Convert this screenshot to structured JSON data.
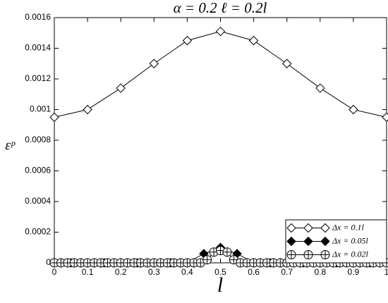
{
  "chart_data": {
    "type": "line",
    "title": "α = 0.2    ℓ = 0.2l",
    "xlabel": "l",
    "ylabel": "εᵖ",
    "xlim": [
      0,
      1
    ],
    "xticks": [
      0,
      0.1,
      0.2,
      0.3,
      0.4,
      0.5,
      0.6,
      0.7,
      0.8,
      0.9,
      1
    ],
    "ylim": [
      0,
      0.0016
    ],
    "yticks": [
      0,
      0.0002,
      0.0004,
      0.0006,
      0.0008,
      0.001,
      0.0012,
      0.0014,
      0.0016
    ],
    "legend": "lower right",
    "series": [
      {
        "name": "Δx = 0.1l",
        "color": "#000000",
        "marker": "open-diamond",
        "x": [
          0,
          0.1,
          0.2,
          0.3,
          0.4,
          0.5,
          0.6,
          0.7,
          0.8,
          0.9,
          1
        ],
        "values": [
          0.00095,
          0.001,
          0.00114,
          0.0013,
          0.00145,
          0.00151,
          0.00145,
          0.0013,
          0.00114,
          0.001,
          0.00095
        ]
      },
      {
        "name": "Δx = 0.05l",
        "color": "#000000",
        "marker": "filled-diamond",
        "x": [
          0,
          0.05,
          0.1,
          0.15,
          0.2,
          0.25,
          0.3,
          0.35,
          0.4,
          0.45,
          0.5,
          0.55,
          0.6,
          0.65,
          0.7,
          0.75,
          0.8,
          0.85,
          0.9,
          0.95,
          1
        ],
        "values": [
          0,
          0,
          0,
          0,
          0,
          0,
          0,
          0,
          0,
          6e-05,
          0.0001,
          6e-05,
          0,
          0,
          0,
          0,
          0,
          0,
          0,
          0,
          0
        ]
      },
      {
        "name": "Δx = 0.02l",
        "color": "#000000",
        "marker": "circle-plus",
        "x": [
          0,
          0.02,
          0.04,
          0.06,
          0.08,
          0.1,
          0.12,
          0.14,
          0.16,
          0.18,
          0.2,
          0.22,
          0.24,
          0.26,
          0.28,
          0.3,
          0.32,
          0.34,
          0.36,
          0.38,
          0.4,
          0.42,
          0.44,
          0.46,
          0.48,
          0.5,
          0.52,
          0.54,
          0.56,
          0.58,
          0.6,
          0.62,
          0.64,
          0.66,
          0.68,
          0.7,
          0.72,
          0.74,
          0.76,
          0.78,
          0.8,
          0.82,
          0.84,
          0.86,
          0.88,
          0.9,
          0.92,
          0.94,
          0.96,
          0.98,
          1
        ],
        "values": [
          0,
          0,
          0,
          0,
          0,
          0,
          0,
          0,
          0,
          0,
          0,
          0,
          0,
          0,
          0,
          0,
          0,
          0,
          0,
          0,
          0,
          0,
          0,
          2e-05,
          7e-05,
          8e-05,
          7e-05,
          2e-05,
          0,
          0,
          0,
          0,
          0,
          0,
          0,
          0,
          0,
          0,
          0,
          0,
          0,
          0,
          0,
          0,
          0,
          0,
          0,
          0,
          0,
          0,
          0
        ]
      }
    ]
  }
}
